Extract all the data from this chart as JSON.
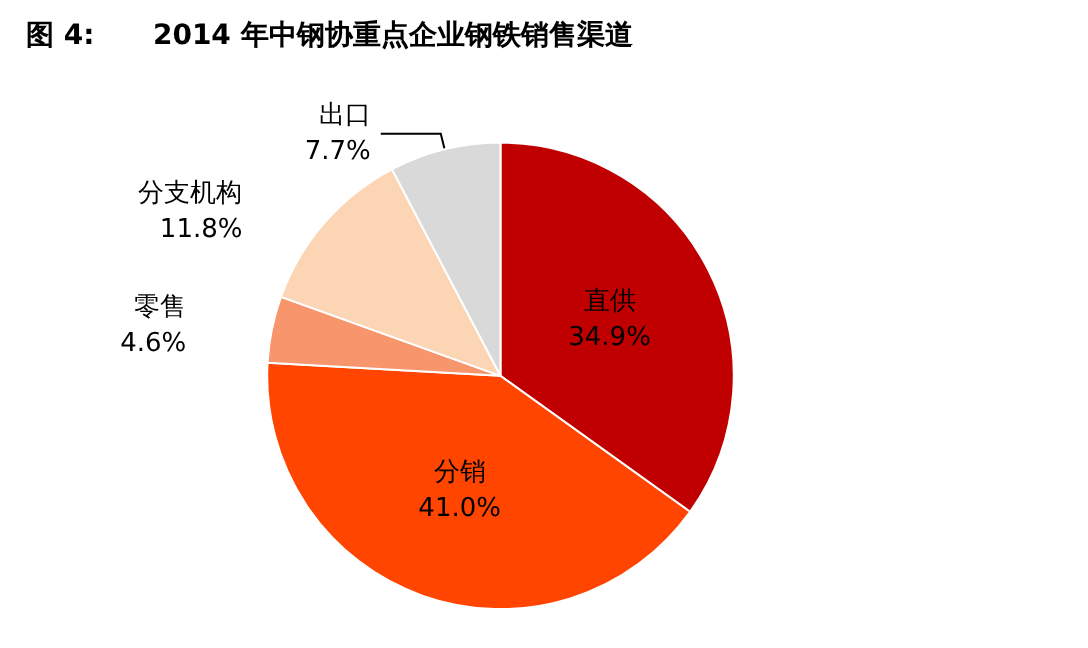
{
  "chart_data": {
    "type": "pie",
    "title": "图 4:      2014 年中钢协重点企业钢铁销售渠道",
    "categories": [
      "直供",
      "分销",
      "零售",
      "分支机构",
      "出口"
    ],
    "values": [
      34.9,
      41.0,
      4.6,
      11.8,
      7.7
    ],
    "value_labels": [
      "34.9%",
      "41.0%",
      "4.6%",
      "11.8%",
      "7.7%"
    ],
    "colors": [
      "#c00000",
      "#ff4500",
      "#f7956d",
      "#fcd5b5",
      "#d9d9d9"
    ],
    "legend": false
  }
}
